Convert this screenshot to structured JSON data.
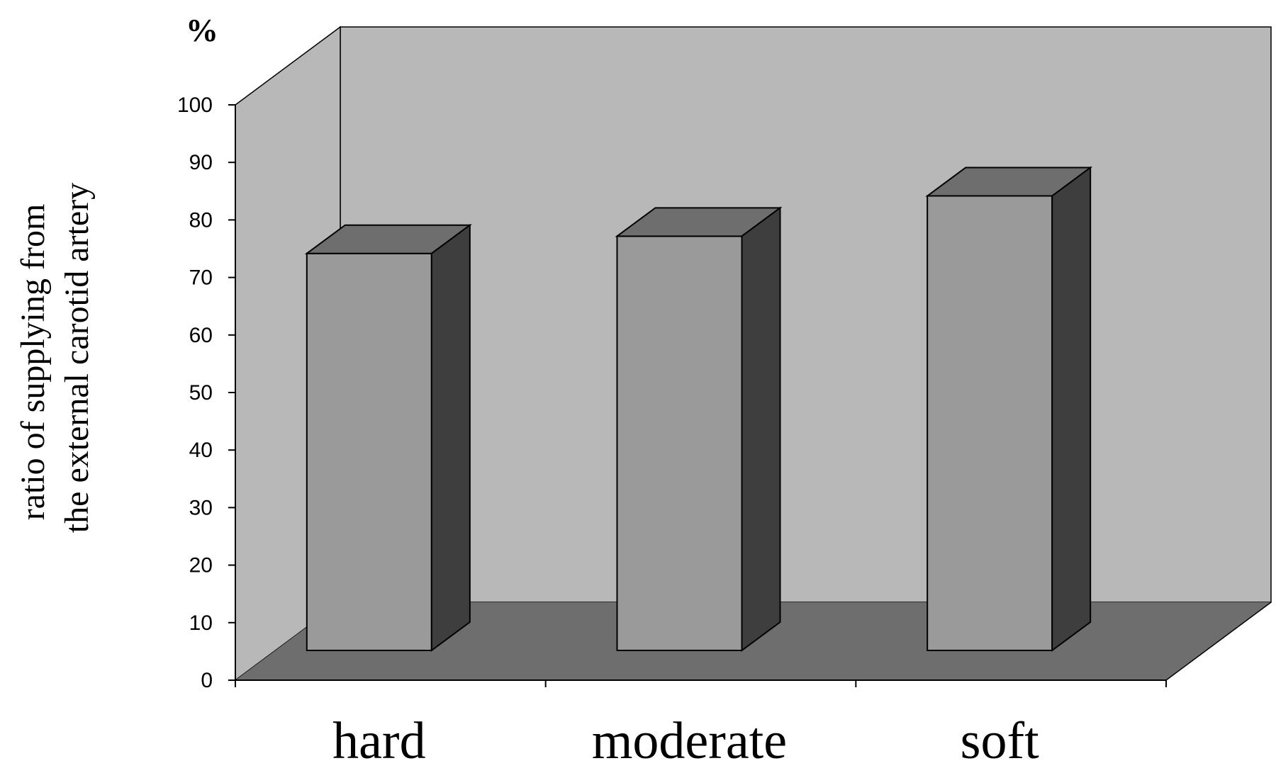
{
  "chart_data": {
    "type": "bar",
    "style": "3d",
    "categories": [
      "hard",
      "moderate",
      "soft"
    ],
    "values": [
      69,
      72,
      79
    ],
    "ylabel_lines": [
      "ratio of supplying from",
      "the external carotid artery"
    ],
    "yunit": "%",
    "ylim": [
      0,
      100
    ],
    "yticks": [
      0,
      10,
      20,
      30,
      40,
      50,
      60,
      70,
      80,
      90,
      100
    ],
    "grid": false,
    "colors": {
      "back_wall": "#b8b8b8",
      "floor": "#6e6e6e",
      "bar_front": "#9a9a9a",
      "bar_top": "#6e6e6e",
      "bar_side": "#3e3e3e",
      "edge": "#000000"
    }
  }
}
